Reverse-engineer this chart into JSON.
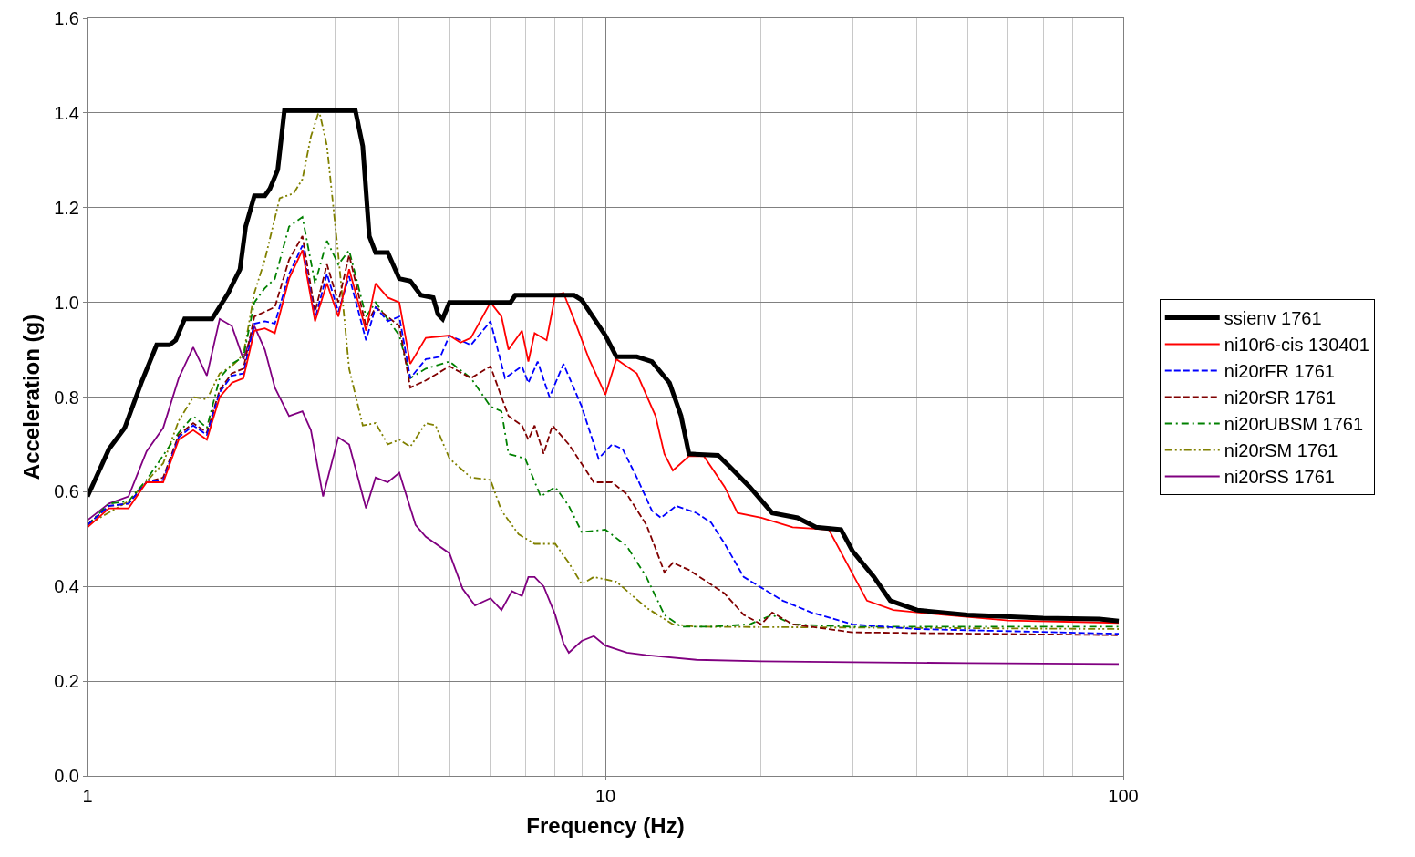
{
  "chart_data": {
    "type": "line",
    "xlabel": "Frequency (Hz)",
    "ylabel": "Acceleration (g)",
    "log": "x",
    "grid": true,
    "legend": "right",
    "marker": "none",
    "xlim": [
      1,
      100
    ],
    "xticks": [
      1,
      10,
      100
    ],
    "ylim": [
      0,
      1.6
    ],
    "yticks": [
      {
        "value": 0,
        "label": "0.0"
      },
      0.2,
      0.4,
      0.6,
      0.8,
      {
        "value": 1,
        "label": "1.0"
      },
      1.2,
      1.4,
      1.6
    ],
    "series": [
      {
        "name": "ssienv 1761",
        "color": "#000000",
        "line_style": "solid",
        "x": [
          1.0,
          1.1,
          1.18,
          1.27,
          1.36,
          1.44,
          1.48,
          1.54,
          1.74,
          1.87,
          1.97,
          2.02,
          2.1,
          2.2,
          2.25,
          2.33,
          2.4,
          3.29,
          3.4,
          3.5,
          3.6,
          3.8,
          4.0,
          4.2,
          4.4,
          4.65,
          4.75,
          4.85,
          5.0,
          5.93,
          6.56,
          6.7,
          7.7,
          8.7,
          9.0,
          10.0,
          10.5,
          11.5,
          12.3,
          13.3,
          14.0,
          14.5,
          16.5,
          17.5,
          19.0,
          21.0,
          23.5,
          25.5,
          28.5,
          30.0,
          33.0,
          35.5,
          40,
          50,
          70,
          90,
          98
        ],
        "values": [
          0.59,
          0.69,
          0.735,
          0.83,
          0.91,
          0.91,
          0.92,
          0.965,
          0.965,
          1.02,
          1.07,
          1.16,
          1.225,
          1.225,
          1.24,
          1.28,
          1.405,
          1.405,
          1.33,
          1.14,
          1.105,
          1.105,
          1.05,
          1.045,
          1.015,
          1.01,
          0.975,
          0.965,
          1.0,
          1.0,
          1.0,
          1.015,
          1.015,
          1.015,
          1.005,
          0.93,
          0.885,
          0.885,
          0.875,
          0.83,
          0.76,
          0.68,
          0.677,
          0.65,
          0.61,
          0.555,
          0.545,
          0.525,
          0.52,
          0.475,
          0.42,
          0.37,
          0.35,
          0.34,
          0.333,
          0.331,
          0.327
        ]
      },
      {
        "name": "ni10r6-cis 130401",
        "color": "#ff0000",
        "line_style": "solid",
        "x": [
          1.0,
          1.1,
          1.2,
          1.3,
          1.4,
          1.5,
          1.6,
          1.7,
          1.8,
          1.9,
          2.0,
          2.1,
          2.2,
          2.3,
          2.45,
          2.6,
          2.75,
          2.9,
          3.05,
          3.2,
          3.45,
          3.6,
          3.8,
          4.0,
          4.2,
          4.5,
          5.0,
          5.25,
          5.5,
          6.0,
          6.3,
          6.5,
          6.9,
          7.1,
          7.3,
          7.7,
          8.0,
          8.3,
          8.8,
          9.3,
          10.0,
          10.5,
          11.5,
          12.5,
          13.0,
          13.5,
          14.5,
          15.5,
          17.0,
          18.0,
          20.0,
          23.0,
          27.0,
          32.0,
          36,
          45,
          60,
          98
        ],
        "values": [
          0.525,
          0.565,
          0.565,
          0.62,
          0.62,
          0.71,
          0.73,
          0.71,
          0.8,
          0.83,
          0.84,
          0.94,
          0.945,
          0.935,
          1.05,
          1.11,
          0.96,
          1.04,
          0.97,
          1.07,
          0.94,
          1.04,
          1.01,
          1.0,
          0.87,
          0.925,
          0.93,
          0.915,
          0.925,
          1.0,
          0.97,
          0.9,
          0.94,
          0.875,
          0.935,
          0.92,
          1.015,
          1.02,
          0.95,
          0.88,
          0.805,
          0.88,
          0.85,
          0.76,
          0.68,
          0.645,
          0.675,
          0.675,
          0.61,
          0.555,
          0.545,
          0.525,
          0.52,
          0.37,
          0.35,
          0.34,
          0.328,
          0.323
        ]
      },
      {
        "name": "ni20rFR 1761",
        "color": "#0000ff",
        "line_style": "dashed",
        "x": [
          1.0,
          1.1,
          1.2,
          1.3,
          1.4,
          1.5,
          1.6,
          1.7,
          1.8,
          1.9,
          2.0,
          2.1,
          2.2,
          2.3,
          2.45,
          2.6,
          2.75,
          2.9,
          3.05,
          3.2,
          3.45,
          3.6,
          3.8,
          4.0,
          4.2,
          4.5,
          4.8,
          5.0,
          5.5,
          6.0,
          6.4,
          6.9,
          7.1,
          7.4,
          7.8,
          8.3,
          9.0,
          9.7,
          10.3,
          10.8,
          11.5,
          12.3,
          12.8,
          13.7,
          15,
          16,
          17,
          18.5,
          22,
          25,
          30,
          40,
          98
        ],
        "values": [
          0.53,
          0.57,
          0.575,
          0.62,
          0.625,
          0.715,
          0.74,
          0.72,
          0.81,
          0.845,
          0.85,
          0.955,
          0.96,
          0.955,
          1.06,
          1.12,
          0.965,
          1.06,
          0.98,
          1.055,
          0.92,
          0.99,
          0.96,
          0.97,
          0.84,
          0.88,
          0.885,
          0.93,
          0.91,
          0.96,
          0.84,
          0.865,
          0.83,
          0.875,
          0.8,
          0.87,
          0.78,
          0.67,
          0.7,
          0.69,
          0.63,
          0.56,
          0.545,
          0.57,
          0.555,
          0.535,
          0.49,
          0.42,
          0.37,
          0.345,
          0.32,
          0.31,
          0.3
        ]
      },
      {
        "name": "ni20rSR 1761",
        "color": "#800000",
        "line_style": "dashed",
        "x": [
          1.0,
          1.1,
          1.2,
          1.3,
          1.4,
          1.5,
          1.6,
          1.7,
          1.8,
          1.9,
          2.0,
          2.1,
          2.3,
          2.45,
          2.6,
          2.75,
          2.9,
          3.05,
          3.2,
          3.45,
          3.6,
          4.0,
          4.2,
          4.5,
          5.0,
          5.5,
          6.0,
          6.3,
          6.5,
          6.9,
          7.1,
          7.3,
          7.6,
          7.9,
          8.5,
          9.5,
          10.3,
          11.0,
          12.0,
          12.5,
          13.0,
          13.5,
          14.5,
          17,
          18.5,
          20,
          21,
          23,
          30,
          98
        ],
        "values": [
          0.53,
          0.57,
          0.575,
          0.62,
          0.63,
          0.72,
          0.745,
          0.725,
          0.815,
          0.85,
          0.86,
          0.97,
          0.99,
          1.09,
          1.14,
          0.98,
          1.08,
          1.0,
          1.1,
          0.95,
          0.99,
          0.95,
          0.82,
          0.835,
          0.865,
          0.84,
          0.865,
          0.8,
          0.76,
          0.74,
          0.71,
          0.74,
          0.68,
          0.74,
          0.7,
          0.62,
          0.62,
          0.595,
          0.53,
          0.48,
          0.43,
          0.45,
          0.435,
          0.385,
          0.34,
          0.32,
          0.345,
          0.32,
          0.303,
          0.297
        ]
      },
      {
        "name": "ni20rUBSM 1761",
        "color": "#008000",
        "line_style": "dashdot",
        "x": [
          1.0,
          1.1,
          1.2,
          1.3,
          1.5,
          1.6,
          1.7,
          1.8,
          1.9,
          2.0,
          2.1,
          2.2,
          2.3,
          2.45,
          2.6,
          2.75,
          2.9,
          3.05,
          3.2,
          3.45,
          3.6,
          4.0,
          4.2,
          4.5,
          5.0,
          5.5,
          6.0,
          6.3,
          6.5,
          7.0,
          7.5,
          8.0,
          8.5,
          9.0,
          10.0,
          11.0,
          12.0,
          13.0,
          14.0,
          16,
          19,
          21,
          23,
          30,
          98
        ],
        "values": [
          0.53,
          0.575,
          0.58,
          0.625,
          0.725,
          0.76,
          0.735,
          0.84,
          0.87,
          0.885,
          1.0,
          1.03,
          1.05,
          1.16,
          1.18,
          1.04,
          1.13,
          1.08,
          1.11,
          0.97,
          1.0,
          0.93,
          0.84,
          0.86,
          0.875,
          0.84,
          0.78,
          0.77,
          0.68,
          0.67,
          0.59,
          0.61,
          0.57,
          0.515,
          0.52,
          0.485,
          0.42,
          0.34,
          0.315,
          0.315,
          0.32,
          0.34,
          0.32,
          0.315,
          0.315
        ]
      },
      {
        "name": "ni20rSM 1761",
        "color": "#808000",
        "line_style": "dashdotdot",
        "x": [
          1.0,
          1.2,
          1.4,
          1.5,
          1.6,
          1.7,
          1.8,
          1.9,
          2.0,
          2.1,
          2.2,
          2.35,
          2.5,
          2.6,
          2.7,
          2.8,
          2.9,
          3.05,
          3.2,
          3.4,
          3.6,
          3.8,
          4.0,
          4.2,
          4.5,
          4.7,
          5.0,
          5.5,
          6.0,
          6.3,
          6.8,
          7.3,
          8.0,
          8.5,
          9.0,
          9.5,
          10.5,
          12,
          13.5,
          15,
          98
        ],
        "values": [
          0.53,
          0.58,
          0.66,
          0.75,
          0.8,
          0.795,
          0.85,
          0.865,
          0.89,
          1.02,
          1.09,
          1.22,
          1.23,
          1.26,
          1.35,
          1.405,
          1.33,
          1.1,
          0.86,
          0.74,
          0.745,
          0.7,
          0.71,
          0.695,
          0.745,
          0.74,
          0.67,
          0.63,
          0.625,
          0.56,
          0.51,
          0.49,
          0.49,
          0.45,
          0.405,
          0.42,
          0.41,
          0.355,
          0.32,
          0.315,
          0.31
        ]
      },
      {
        "name": "ni20rSS 1761",
        "color": "#800080",
        "line_style": "solid",
        "x": [
          1.0,
          1.1,
          1.2,
          1.3,
          1.4,
          1.5,
          1.6,
          1.7,
          1.8,
          1.9,
          2.0,
          2.1,
          2.2,
          2.3,
          2.45,
          2.6,
          2.7,
          2.85,
          3.05,
          3.2,
          3.45,
          3.6,
          3.8,
          4.0,
          4.3,
          4.5,
          5.0,
          5.3,
          5.6,
          6.0,
          6.3,
          6.6,
          6.9,
          7.1,
          7.3,
          7.6,
          8.0,
          8.3,
          8.5,
          9.0,
          9.5,
          10.0,
          11,
          12,
          15,
          20,
          30,
          50,
          98
        ],
        "values": [
          0.54,
          0.575,
          0.59,
          0.685,
          0.735,
          0.84,
          0.905,
          0.845,
          0.965,
          0.95,
          0.88,
          0.95,
          0.9,
          0.82,
          0.76,
          0.77,
          0.73,
          0.59,
          0.715,
          0.7,
          0.565,
          0.63,
          0.62,
          0.64,
          0.53,
          0.505,
          0.47,
          0.395,
          0.36,
          0.375,
          0.35,
          0.39,
          0.38,
          0.42,
          0.42,
          0.4,
          0.34,
          0.28,
          0.26,
          0.285,
          0.295,
          0.275,
          0.26,
          0.255,
          0.245,
          0.242,
          0.24,
          0.238,
          0.236
        ]
      }
    ]
  }
}
